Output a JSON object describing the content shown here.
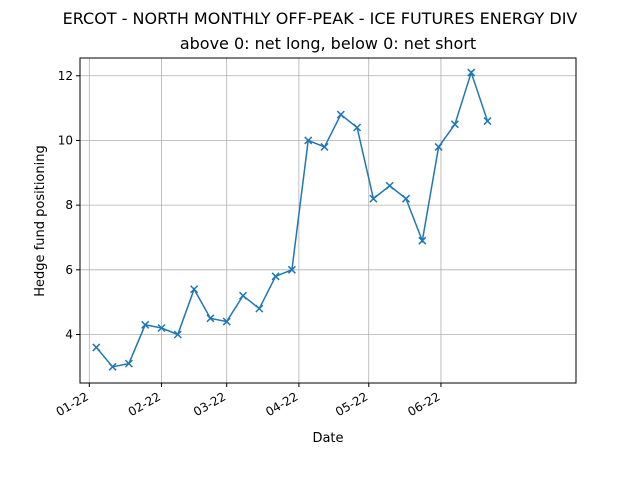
{
  "chart_data": {
    "type": "line",
    "title": "ERCOT - NORTH MONTHLY OFF-PEAK - ICE FUTURES ENERGY DIV",
    "subtitle": "above 0: net long, below 0: net short",
    "xlabel": "Date",
    "ylabel": "Hedge fund positioning",
    "x_ticks": [
      "2022-01-01",
      "2022-02-01",
      "2022-03-01",
      "2022-04-01",
      "2022-05-01",
      "2022-06-01"
    ],
    "x_tick_labels": [
      "01-22",
      "02-22",
      "03-22",
      "04-22",
      "05-22",
      "06-22"
    ],
    "xlim": [
      "2021-12-28",
      "2022-07-29"
    ],
    "y_ticks": [
      4,
      6,
      8,
      10,
      12
    ],
    "ylim": [
      2.5,
      12.55
    ],
    "grid": true,
    "marker": "x",
    "color": "#1f77b4",
    "series": [
      {
        "x": [
          "2022-01-04",
          "2022-01-11",
          "2022-01-18",
          "2022-01-25",
          "2022-02-01",
          "2022-02-08",
          "2022-02-15",
          "2022-02-22",
          "2022-03-01",
          "2022-03-08",
          "2022-03-15",
          "2022-03-22",
          "2022-03-29",
          "2022-04-05",
          "2022-04-12",
          "2022-04-19",
          "2022-04-26",
          "2022-05-03",
          "2022-05-10",
          "2022-05-17",
          "2022-05-24",
          "2022-05-31",
          "2022-06-07",
          "2022-06-14",
          "2022-06-21"
        ],
        "values": [
          3.6,
          3.0,
          3.1,
          4.3,
          4.2,
          4.0,
          5.4,
          4.5,
          4.4,
          5.2,
          4.8,
          5.8,
          6.0,
          10.0,
          9.8,
          10.8,
          10.4,
          8.2,
          8.6,
          8.2,
          6.9,
          9.8,
          10.5,
          12.1,
          10.6
        ]
      }
    ]
  }
}
